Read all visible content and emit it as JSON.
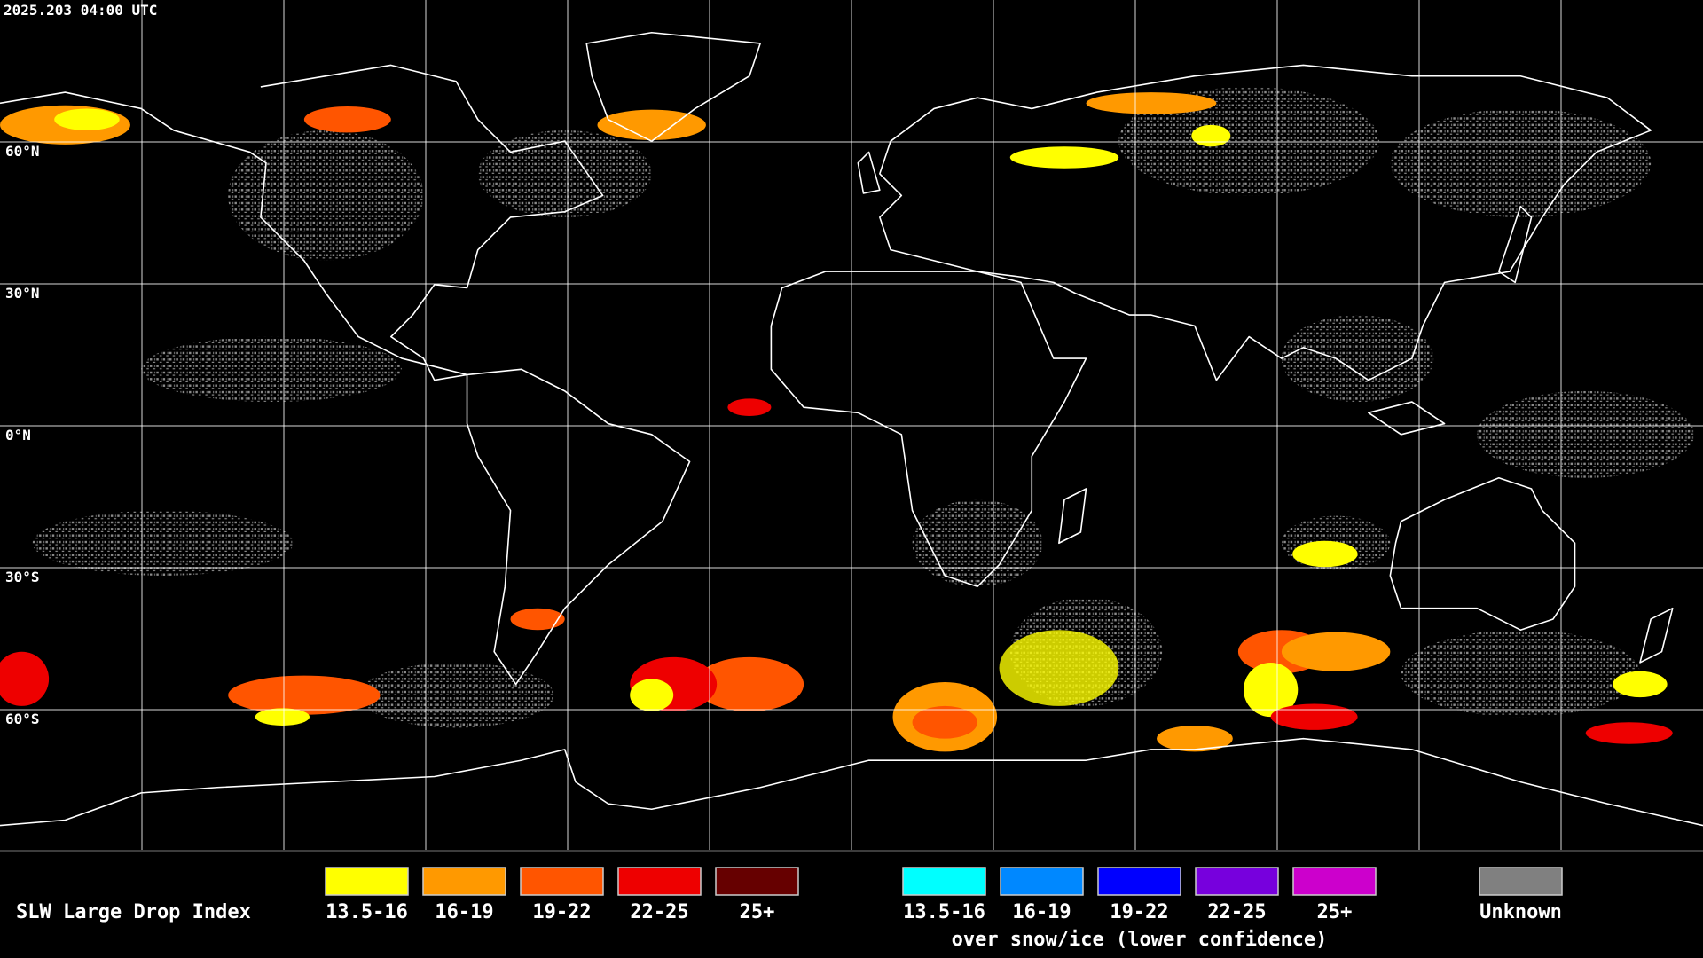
{
  "timestamp": "2025.203 04:00 UTC",
  "latitude_labels": [
    "60°N",
    "30°N",
    "0°N",
    "30°S",
    "60°S"
  ],
  "legend": {
    "title": "SLW Large Drop Index",
    "groups": [
      {
        "items": [
          {
            "label": "13.5-16",
            "color": "#ffff00"
          },
          {
            "label": "16-19",
            "color": "#ff9900"
          },
          {
            "label": "19-22",
            "color": "#ff5500"
          },
          {
            "label": "22-25",
            "color": "#ee0000"
          },
          {
            "label": "25+",
            "color": "#660000"
          }
        ]
      },
      {
        "items": [
          {
            "label": "13.5-16",
            "color": "#00ffff"
          },
          {
            "label": "16-19",
            "color": "#0088ff"
          },
          {
            "label": "19-22",
            "color": "#0000ff"
          },
          {
            "label": "22-25",
            "color": "#7700dd"
          },
          {
            "label": "25+",
            "color": "#cc00cc"
          }
        ],
        "caption": "over snow/ice (lower confidence)"
      },
      {
        "items": [
          {
            "label": "Unknown",
            "color": "#808080"
          }
        ]
      }
    ]
  }
}
